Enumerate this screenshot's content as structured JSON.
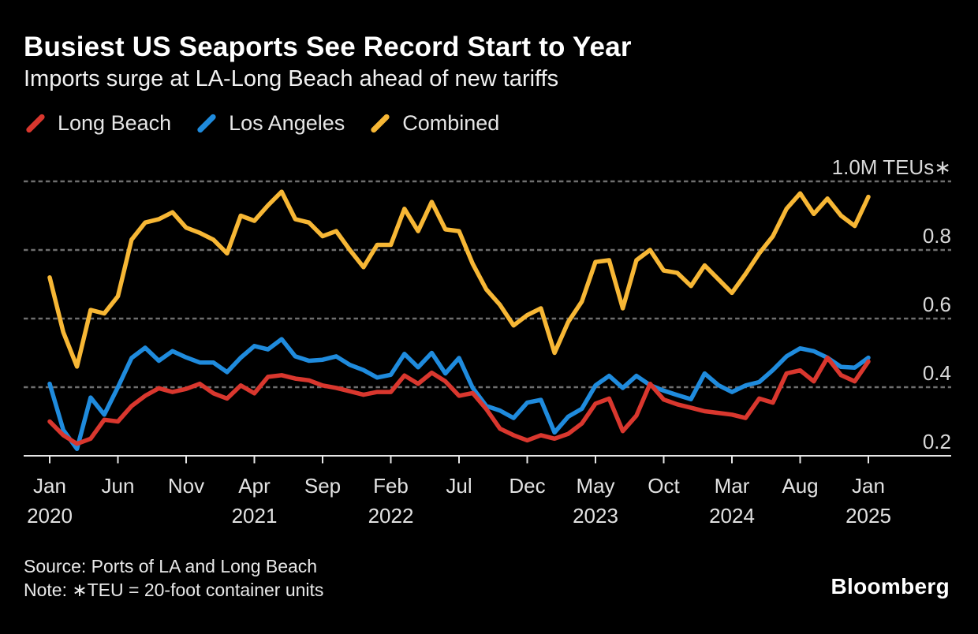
{
  "header": {
    "title": "Busiest US Seaports See Record Start to Year",
    "subtitle": "Imports surge at LA-Long Beach ahead of new tariffs"
  },
  "legend": {
    "items": [
      {
        "label": "Long Beach",
        "color": "#d9372e"
      },
      {
        "label": "Los Angeles",
        "color": "#1f8bdd"
      },
      {
        "label": "Combined",
        "color": "#f7b735"
      }
    ]
  },
  "footer": {
    "source": "Source: Ports of LA and Long Beach",
    "note": "Note: ∗TEU = 20-foot container units"
  },
  "branding": {
    "wordmark": "Bloomberg"
  },
  "colors": {
    "background": "#000000",
    "title_text": "#ffffff",
    "axis_text": "#d9d9d9",
    "gridline": "#6f6f6f",
    "axis_line": "#e6e6e6"
  },
  "chart_data": {
    "type": "line",
    "title": "Busiest US Seaports See Record Start to Year",
    "subtitle": "Imports surge at LA-Long Beach ahead of new tariffs",
    "unit_label": "1.0M TEUs∗",
    "ylabel": "Million TEUs",
    "ylim": [
      0.2,
      1.04
    ],
    "grid": true,
    "legend_position": "top",
    "x": [
      "2020-01",
      "2020-02",
      "2020-03",
      "2020-04",
      "2020-05",
      "2020-06",
      "2020-07",
      "2020-08",
      "2020-09",
      "2020-10",
      "2020-11",
      "2020-12",
      "2021-01",
      "2021-02",
      "2021-03",
      "2021-04",
      "2021-05",
      "2021-06",
      "2021-07",
      "2021-08",
      "2021-09",
      "2021-10",
      "2021-11",
      "2021-12",
      "2022-01",
      "2022-02",
      "2022-03",
      "2022-04",
      "2022-05",
      "2022-06",
      "2022-07",
      "2022-08",
      "2022-09",
      "2022-10",
      "2022-11",
      "2022-12",
      "2023-01",
      "2023-02",
      "2023-03",
      "2023-04",
      "2023-05",
      "2023-06",
      "2023-07",
      "2023-08",
      "2023-09",
      "2023-10",
      "2023-11",
      "2023-12",
      "2024-01",
      "2024-02",
      "2024-03",
      "2024-04",
      "2024-05",
      "2024-06",
      "2024-07",
      "2024-08",
      "2024-09",
      "2024-10",
      "2024-11",
      "2024-12",
      "2025-01"
    ],
    "x_axis_ticks": [
      {
        "index": 0,
        "month": "Jan",
        "year": "2020"
      },
      {
        "index": 5,
        "month": "Jun",
        "year": ""
      },
      {
        "index": 10,
        "month": "Nov",
        "year": ""
      },
      {
        "index": 15,
        "month": "Apr",
        "year": "2021"
      },
      {
        "index": 20,
        "month": "Sep",
        "year": ""
      },
      {
        "index": 25,
        "month": "Feb",
        "year": "2022"
      },
      {
        "index": 30,
        "month": "Jul",
        "year": ""
      },
      {
        "index": 35,
        "month": "Dec",
        "year": ""
      },
      {
        "index": 40,
        "month": "May",
        "year": "2023"
      },
      {
        "index": 45,
        "month": "Oct",
        "year": ""
      },
      {
        "index": 50,
        "month": "Mar",
        "year": "2024"
      },
      {
        "index": 55,
        "month": "Aug",
        "year": ""
      },
      {
        "index": 60,
        "month": "Jan",
        "year": "2025"
      }
    ],
    "y_axis_ticks": [
      {
        "value": 1.0,
        "label": "1.0M TEUs∗",
        "gridline": "dashed"
      },
      {
        "value": 0.8,
        "label": "0.8",
        "gridline": "dashed"
      },
      {
        "value": 0.6,
        "label": "0.6",
        "gridline": "dashed"
      },
      {
        "value": 0.4,
        "label": "0.4",
        "gridline": "dashed"
      },
      {
        "value": 0.2,
        "label": "0.2",
        "gridline": "solid-baseline"
      }
    ],
    "series": [
      {
        "name": "Long Beach",
        "color": "#d9372e",
        "values": [
          0.3,
          0.26,
          0.235,
          0.25,
          0.305,
          0.3,
          0.345,
          0.375,
          0.397,
          0.386,
          0.395,
          0.41,
          0.382,
          0.367,
          0.405,
          0.382,
          0.43,
          0.435,
          0.425,
          0.42,
          0.405,
          0.398,
          0.388,
          0.378,
          0.386,
          0.386,
          0.434,
          0.41,
          0.442,
          0.417,
          0.375,
          0.383,
          0.336,
          0.279,
          0.26,
          0.245,
          0.26,
          0.25,
          0.264,
          0.294,
          0.352,
          0.367,
          0.272,
          0.317,
          0.41,
          0.364,
          0.35,
          0.34,
          0.33,
          0.325,
          0.32,
          0.31,
          0.367,
          0.355,
          0.44,
          0.449,
          0.417,
          0.486,
          0.435,
          0.417,
          0.475
        ]
      },
      {
        "name": "Los Angeles",
        "color": "#1f8bdd",
        "values": [
          0.41,
          0.275,
          0.22,
          0.37,
          0.32,
          0.4,
          0.485,
          0.515,
          0.477,
          0.505,
          0.487,
          0.472,
          0.472,
          0.444,
          0.486,
          0.52,
          0.51,
          0.54,
          0.49,
          0.477,
          0.48,
          0.49,
          0.465,
          0.45,
          0.428,
          0.436,
          0.497,
          0.458,
          0.5,
          0.44,
          0.485,
          0.398,
          0.345,
          0.332,
          0.31,
          0.355,
          0.363,
          0.268,
          0.314,
          0.337,
          0.405,
          0.433,
          0.398,
          0.433,
          0.406,
          0.39,
          0.377,
          0.365,
          0.44,
          0.406,
          0.386,
          0.405,
          0.415,
          0.45,
          0.49,
          0.513,
          0.505,
          0.486,
          0.459,
          0.457,
          0.486
        ]
      },
      {
        "name": "Combined",
        "color": "#f7b735",
        "values": [
          0.72,
          0.56,
          0.46,
          0.625,
          0.615,
          0.665,
          0.83,
          0.88,
          0.89,
          0.91,
          0.865,
          0.85,
          0.83,
          0.79,
          0.9,
          0.885,
          0.93,
          0.97,
          0.89,
          0.88,
          0.84,
          0.855,
          0.8,
          0.75,
          0.815,
          0.815,
          0.92,
          0.855,
          0.94,
          0.86,
          0.855,
          0.76,
          0.685,
          0.64,
          0.58,
          0.61,
          0.63,
          0.5,
          0.59,
          0.65,
          0.765,
          0.77,
          0.63,
          0.77,
          0.8,
          0.74,
          0.733,
          0.695,
          0.755,
          0.715,
          0.675,
          0.73,
          0.79,
          0.84,
          0.92,
          0.965,
          0.905,
          0.95,
          0.9,
          0.87,
          0.955
        ]
      }
    ]
  }
}
